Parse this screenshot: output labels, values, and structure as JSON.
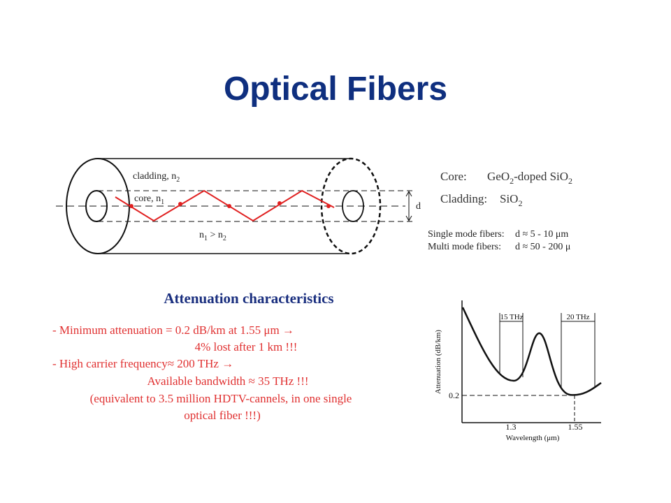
{
  "title": "Optical Fibers",
  "fiber_diagram": {
    "cladding_label": [
      "cladding, n",
      "2"
    ],
    "core_label": [
      "core, n",
      "1"
    ],
    "condition": [
      "n",
      "1",
      " > n",
      "2"
    ],
    "d_label": "d"
  },
  "materials": {
    "core": {
      "label": "Core:",
      "value": [
        "GeO",
        "2",
        "-doped SiO",
        "2"
      ]
    },
    "cladding": {
      "label": "Cladding:",
      "value": [
        "SiO",
        "2"
      ]
    }
  },
  "modes": [
    [
      "Single mode fibers:",
      "d ≈ 5 - 10 μm"
    ],
    [
      "Multi mode fibers:",
      "d ≈ 50 - 200 μ"
    ]
  ],
  "attenuation": {
    "heading": "Attenuation characteristics",
    "lines": [
      "- Minimum attenuation = 0.2 dB/km at 1.55 μm →",
      "4% lost after 1 km !!!",
      "- High carrier frequency≈ 200 THz →",
      "Available bandwidth ≈ 35 THz !!!",
      "(equivalent to 3.5 million HDTV-cannels, in one single",
      "optical fiber !!!)"
    ]
  },
  "plot": {
    "y_label": "Attenuation (dB/km)",
    "x_label": "Wavelength (μm)",
    "x_ticks": [
      "1.3",
      "1.55"
    ],
    "y_ticks": [
      "0.2"
    ],
    "bands": [
      "15 THz",
      "20 THz"
    ]
  }
}
